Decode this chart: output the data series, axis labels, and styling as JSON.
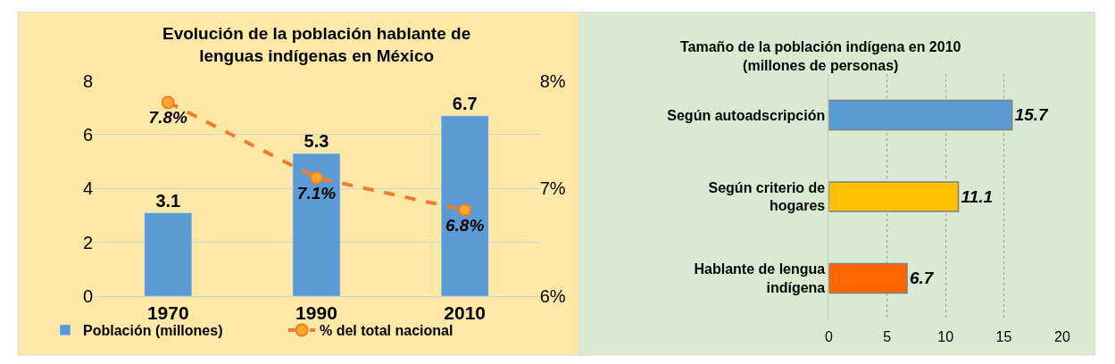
{
  "chart_data": [
    {
      "type": "bar",
      "title": "Evolución de la población hablante de lenguas indígenas en México",
      "categories": [
        "1970",
        "1990",
        "2010"
      ],
      "series": [
        {
          "name": "Población (millones)",
          "color": "#5b9bd5",
          "values": [
            3.1,
            5.3,
            6.7
          ]
        },
        {
          "name": "% del total nacional",
          "type": "line",
          "axis": "y2",
          "color": "#ed7d31",
          "values": [
            7.8,
            7.1,
            6.8
          ],
          "value_labels": [
            "7.8%",
            "7.1%",
            "6.8%"
          ],
          "marker": "circle",
          "line_style": "dashed"
        }
      ],
      "ylim": [
        0,
        8
      ],
      "yticks": [
        0,
        2,
        4,
        6,
        8
      ],
      "y2lim": [
        6,
        8
      ],
      "y2ticks": [
        {
          "value": 6,
          "label": "6%"
        },
        {
          "value": 7,
          "label": "7%"
        },
        {
          "value": 8,
          "label": "8%"
        }
      ],
      "grid": "y",
      "legend": "bottom",
      "data_labels": true
    },
    {
      "type": "bar",
      "orientation": "horizontal",
      "title": "Tamaño de la población indígena en 2010 (millones de personas)",
      "categories": [
        "Según autoadscripción",
        "Según criterio de hogares",
        "Hablante de lengua indígena"
      ],
      "values": [
        15.7,
        11.1,
        6.7
      ],
      "colors": [
        "#5b9bd5",
        "#ffc000",
        "#ff6600"
      ],
      "xlim": [
        0,
        20
      ],
      "xticks": [
        0,
        5,
        10,
        15,
        20
      ],
      "grid": "x",
      "data_labels": true
    }
  ]
}
